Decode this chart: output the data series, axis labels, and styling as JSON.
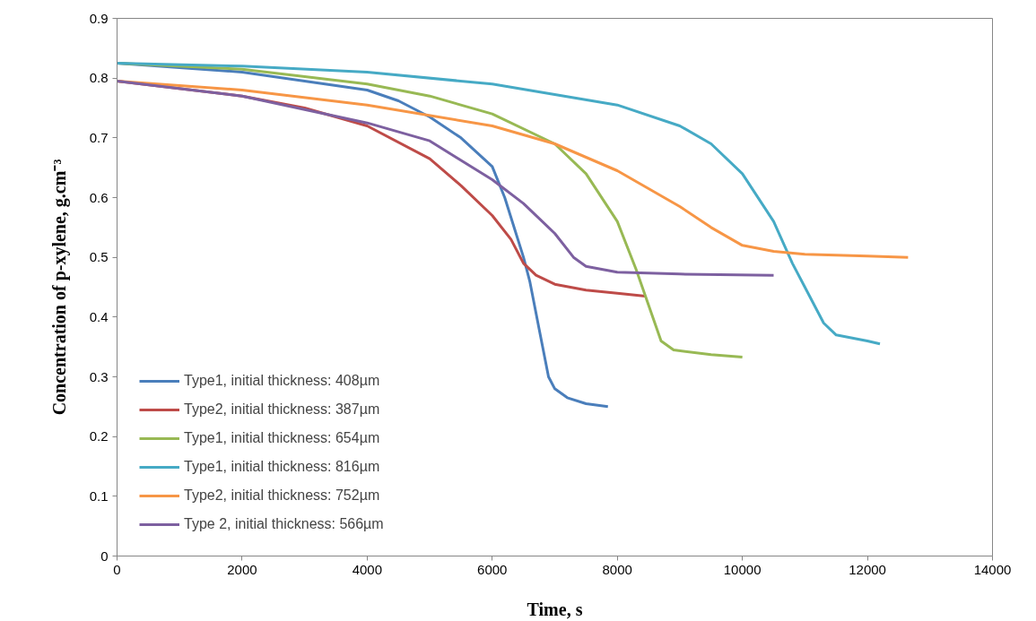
{
  "chart_data": {
    "type": "line",
    "xlabel": "Time, s",
    "ylabel": "Concentration of p-xylene, g.cm⁻³",
    "xlim": [
      0,
      14000
    ],
    "xticks": [
      0,
      2000,
      4000,
      6000,
      8000,
      10000,
      12000,
      14000
    ],
    "ylim": [
      0,
      0.9
    ],
    "yticks": [
      0,
      0.1,
      0.2,
      0.3,
      0.4,
      0.5,
      0.6,
      0.7,
      0.8,
      0.9
    ],
    "grid": false,
    "legend": "bottom left",
    "marker": "none",
    "line_style": "solid",
    "series": [
      {
        "name": "Type1, initial thickness: 408µm",
        "color": "#4a7ebb",
        "x": [
          0,
          2000,
          4000,
          4500,
          5000,
          5500,
          6000,
          6200,
          6500,
          6600,
          6750,
          6900,
          7000,
          7200,
          7500,
          7850
        ],
        "values": [
          0.825,
          0.81,
          0.78,
          0.762,
          0.735,
          0.7,
          0.652,
          0.6,
          0.5,
          0.46,
          0.38,
          0.3,
          0.28,
          0.265,
          0.255,
          0.25
        ]
      },
      {
        "name": "Type2, initial thickness: 387µm",
        "color": "#be4b48",
        "x": [
          0,
          2000,
          3000,
          4000,
          5000,
          5500,
          6000,
          6300,
          6500,
          6700,
          7000,
          7500,
          8000,
          8450
        ],
        "values": [
          0.795,
          0.77,
          0.75,
          0.72,
          0.665,
          0.62,
          0.57,
          0.53,
          0.49,
          0.47,
          0.455,
          0.445,
          0.44,
          0.435
        ]
      },
      {
        "name": "Type1, initial thickness: 654µm",
        "color": "#98b954",
        "x": [
          0,
          2000,
          4000,
          5000,
          6000,
          7000,
          7500,
          8000,
          8300,
          8500,
          8700,
          8900,
          9500,
          10000
        ],
        "values": [
          0.825,
          0.815,
          0.79,
          0.77,
          0.74,
          0.69,
          0.64,
          0.56,
          0.48,
          0.42,
          0.36,
          0.345,
          0.337,
          0.333
        ]
      },
      {
        "name": "Type1, initial thickness: 816µm",
        "color": "#46aac5",
        "x": [
          0,
          2000,
          4000,
          6000,
          8000,
          9000,
          9500,
          10000,
          10500,
          10800,
          11000,
          11300,
          11500,
          12000,
          12200
        ],
        "values": [
          0.825,
          0.82,
          0.81,
          0.79,
          0.755,
          0.72,
          0.69,
          0.64,
          0.56,
          0.49,
          0.45,
          0.39,
          0.37,
          0.36,
          0.355
        ]
      },
      {
        "name": "Type2, initial thickness: 752µm",
        "color": "#f79646",
        "x": [
          0,
          2000,
          4000,
          6000,
          7000,
          8000,
          9000,
          9500,
          10000,
          10500,
          11000,
          12000,
          12650
        ],
        "values": [
          0.795,
          0.78,
          0.755,
          0.72,
          0.69,
          0.645,
          0.585,
          0.55,
          0.52,
          0.51,
          0.505,
          0.502,
          0.5
        ]
      },
      {
        "name": "Type 2, initial thickness: 566µm",
        "color": "#7d60a0",
        "x": [
          0,
          2000,
          4000,
          5000,
          6000,
          6500,
          7000,
          7300,
          7500,
          8000,
          9000,
          10500
        ],
        "values": [
          0.795,
          0.77,
          0.725,
          0.695,
          0.63,
          0.59,
          0.54,
          0.5,
          0.485,
          0.475,
          0.472,
          0.47
        ]
      }
    ]
  }
}
